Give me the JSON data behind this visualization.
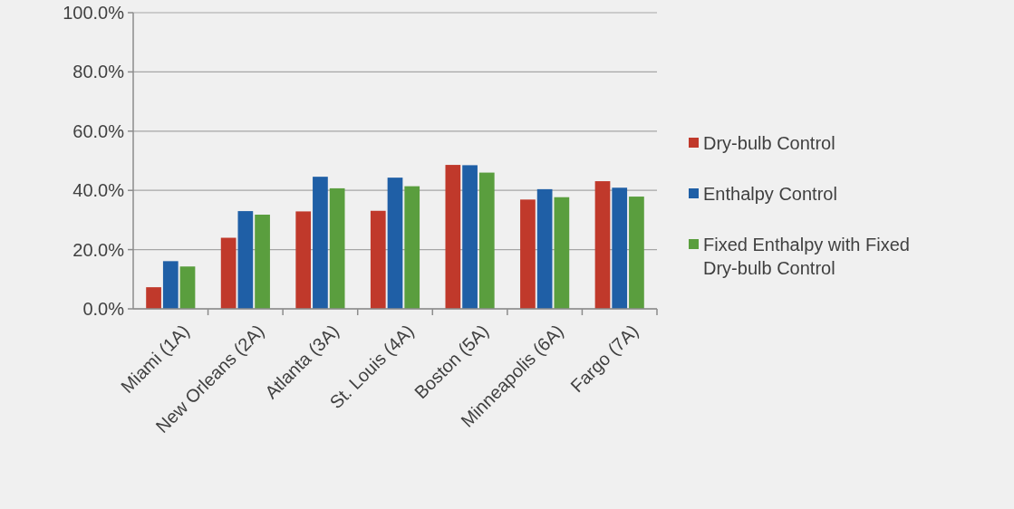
{
  "chart_data": {
    "type": "bar",
    "categories": [
      "Miami (1A)",
      "New Orleans (2A)",
      "Atlanta (3A)",
      "St. Louis (4A)",
      "Boston (5A)",
      "Minneapolis (6A)",
      "Fargo (7A)"
    ],
    "series": [
      {
        "name": "Dry-bulb Control",
        "color": "#c0392b",
        "values": [
          7.3,
          24.0,
          32.9,
          33.1,
          48.6,
          36.9,
          43.1
        ]
      },
      {
        "name": "Enthalpy Control",
        "color": "#1f5fa6",
        "values": [
          16.1,
          33.0,
          44.6,
          44.3,
          48.5,
          40.4,
          40.9
        ]
      },
      {
        "name": "Fixed Enthalpy with Fixed Dry-bulb Control",
        "color": "#5a9e3e",
        "values": [
          14.3,
          31.8,
          40.7,
          41.4,
          46.0,
          37.7,
          37.9
        ]
      }
    ],
    "ylim": [
      0,
      100
    ],
    "yticks": [
      {
        "value": 0,
        "label": "0.0%"
      },
      {
        "value": 20,
        "label": "20.0%"
      },
      {
        "value": 40,
        "label": "40.0%"
      },
      {
        "value": 60,
        "label": "60.0%"
      },
      {
        "value": 80,
        "label": "80.0%"
      },
      {
        "value": 100,
        "label": "100.0%"
      }
    ],
    "grid": "y",
    "legend": "right"
  }
}
